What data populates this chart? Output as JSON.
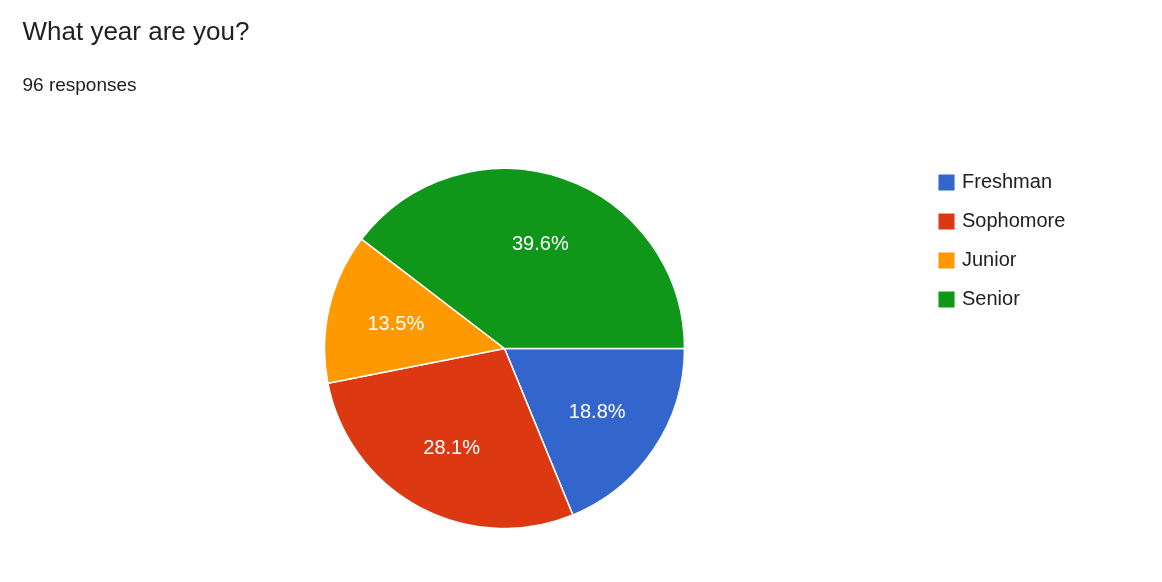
{
  "chart_data": {
    "type": "pie",
    "title": "What year are you?",
    "subtitle": "96 responses",
    "categories": [
      "Freshman",
      "Sophomore",
      "Junior",
      "Senior"
    ],
    "values": [
      18.8,
      28.1,
      13.5,
      39.6
    ],
    "colors": [
      "#3366cc",
      "#dc3912",
      "#ff9900",
      "#109618"
    ],
    "value_labels": [
      "18.8%",
      "28.1%",
      "13.5%",
      "39.6%"
    ],
    "legend": "right"
  }
}
